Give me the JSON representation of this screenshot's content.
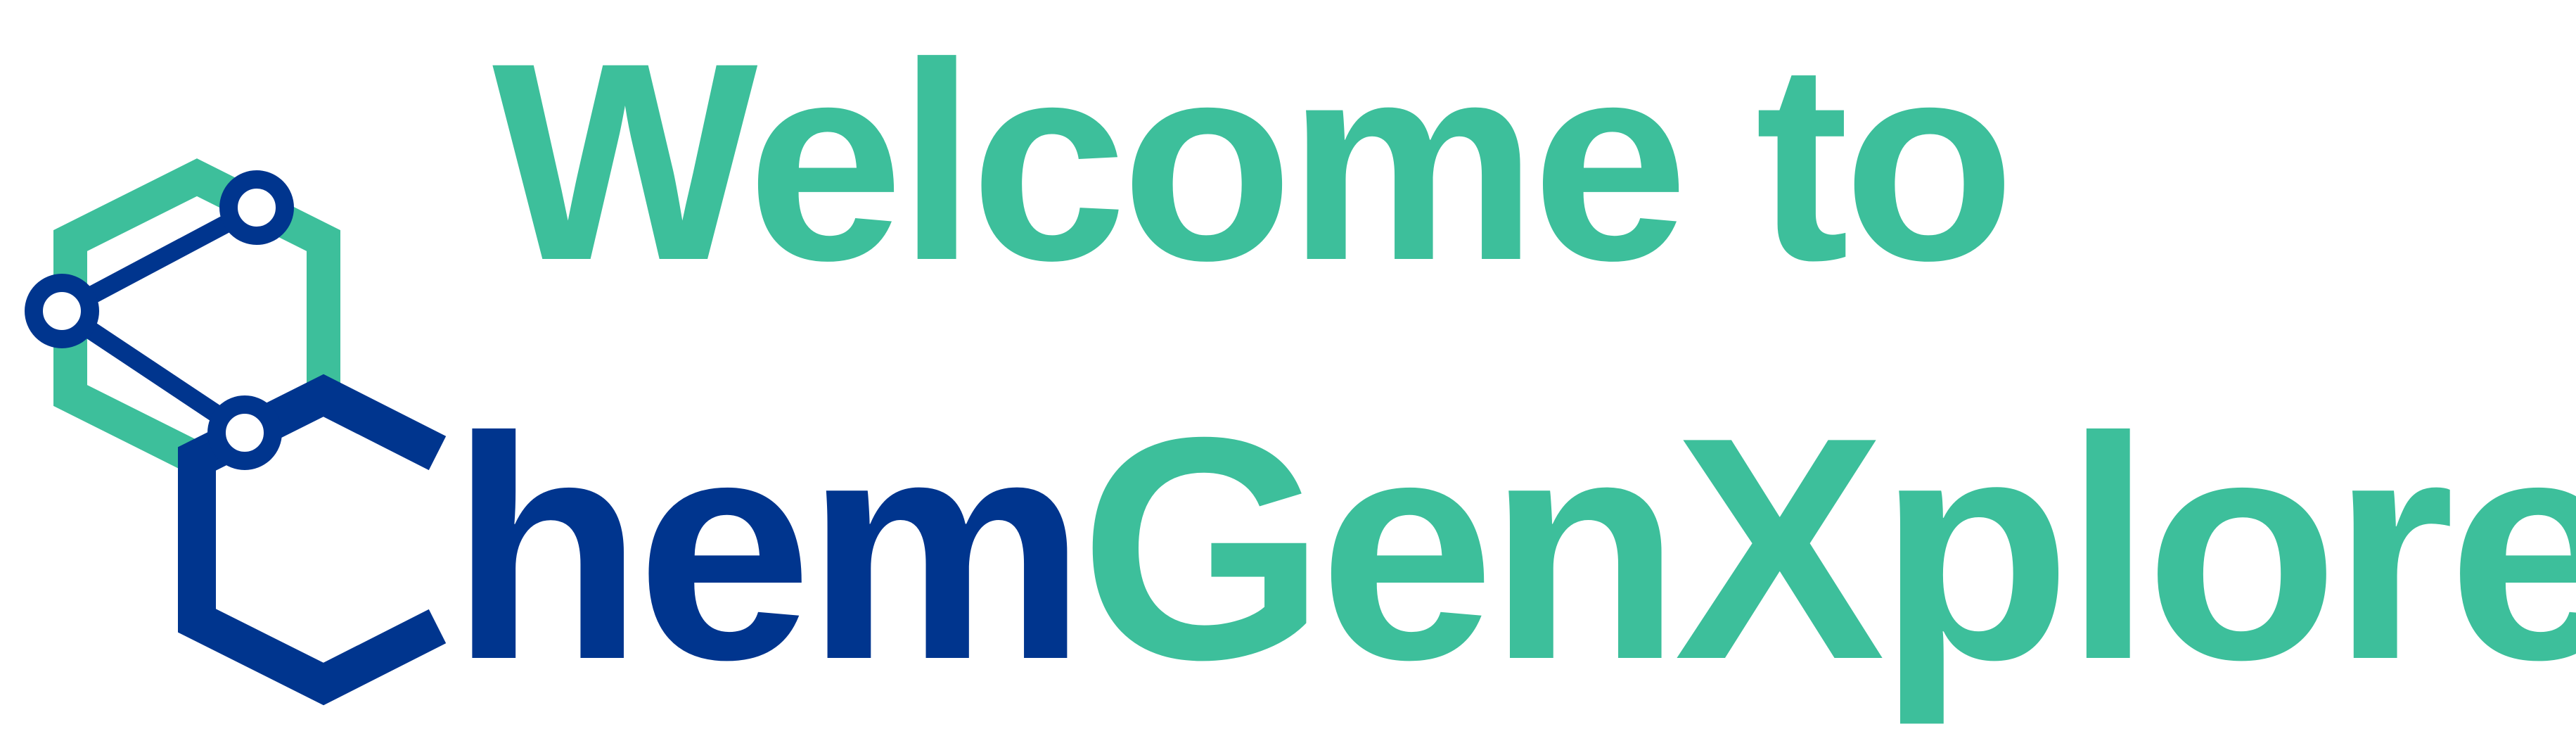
{
  "headline": "Welcome to",
  "brand": {
    "part_chem": "hem",
    "part_gen": "GenXplore"
  },
  "colors": {
    "teal": "#3dbf9b",
    "navy": "#00358e",
    "background": "#ffffff"
  },
  "logo": {
    "icon": "molecule-hexagon-icon"
  }
}
